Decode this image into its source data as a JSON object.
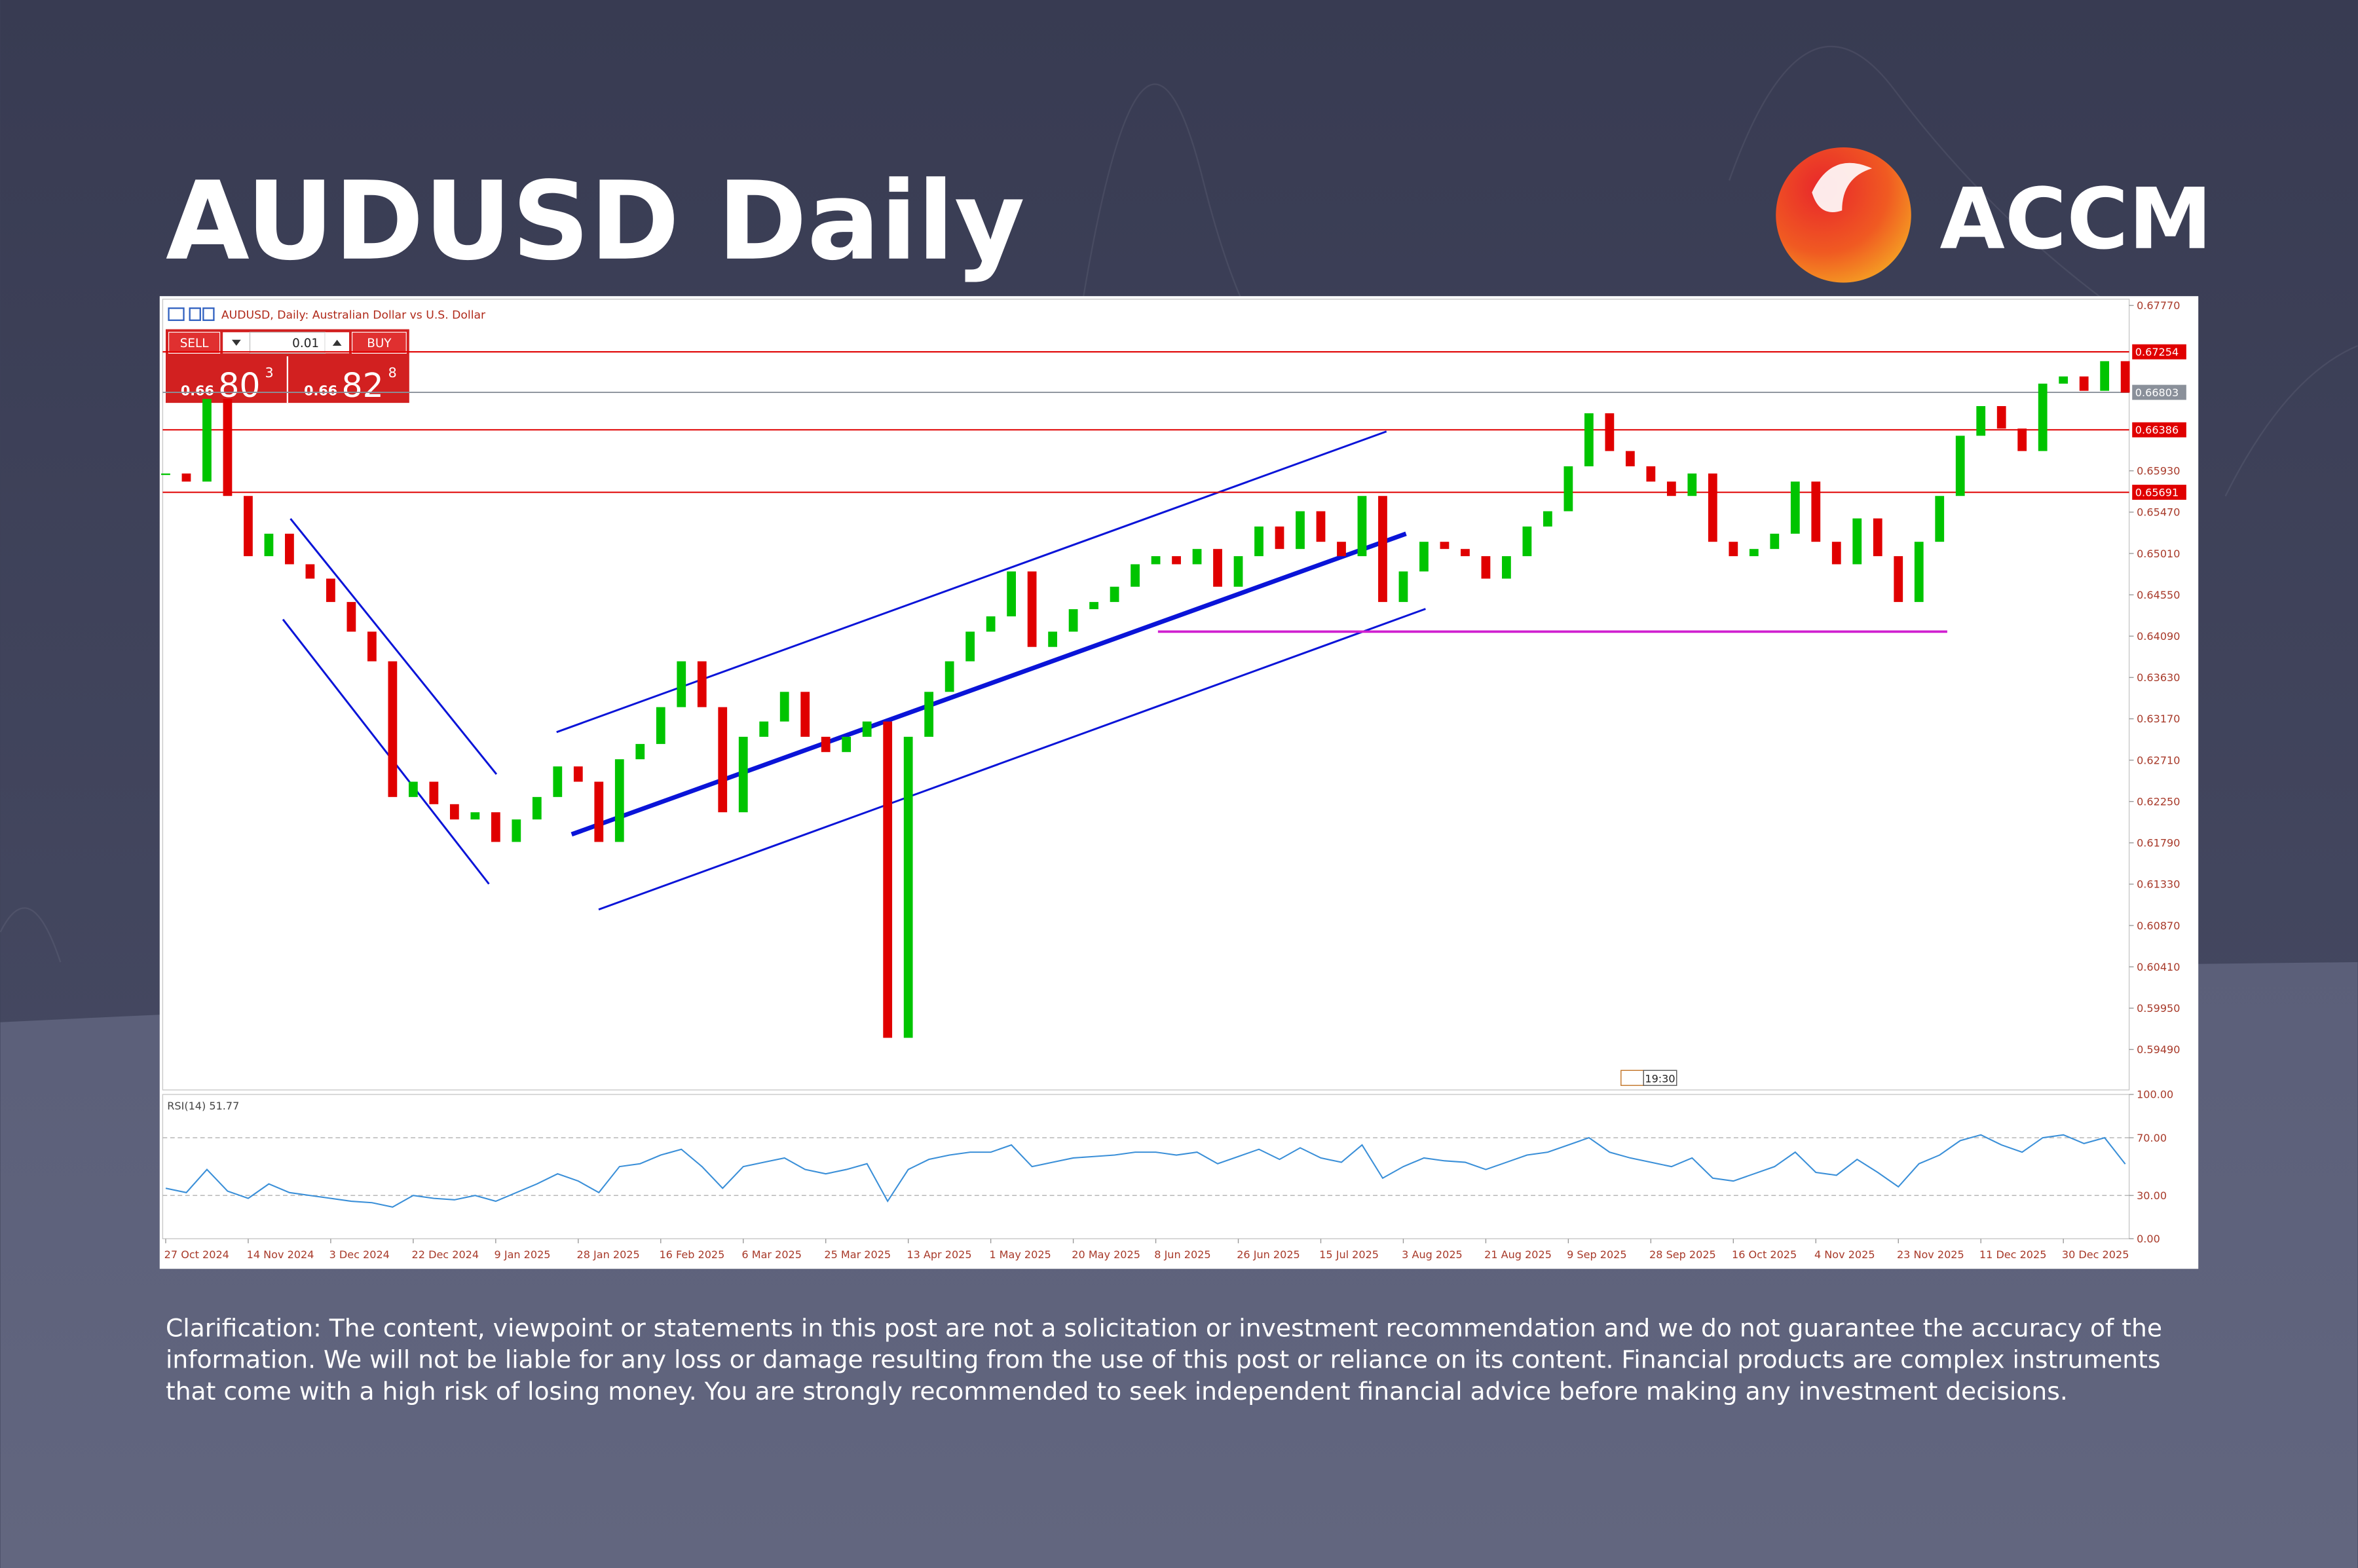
{
  "header": {
    "title": "AUDUSD Daily",
    "brand": "ACCM"
  },
  "chart_data": [
    {
      "type": "candlestick",
      "symbol_label": "AUDUSD, Daily:  Australian Dollar vs U.S. Dollar",
      "categories": [
        "27 Oct 2024",
        null,
        null,
        null,
        "14 Nov 2024",
        null,
        null,
        null,
        "3 Dec 2024",
        null,
        null,
        null,
        "22 Dec 2024",
        null,
        null,
        null,
        "9 Jan 2025",
        null,
        null,
        null,
        "28 Jan 2025",
        null,
        null,
        null,
        "16 Feb 2025",
        null,
        null,
        null,
        "6 Mar 2025",
        null,
        null,
        null,
        "25 Mar 2025",
        null,
        null,
        null,
        "13 Apr 2025",
        null,
        null,
        null,
        "1 May 2025",
        null,
        null,
        null,
        "20 May 2025",
        null,
        null,
        null,
        "8 Jun 2025",
        null,
        null,
        null,
        "26 Jun 2025",
        null,
        null,
        null,
        "15 Jul 2025",
        null,
        null,
        null,
        "3 Aug 2025",
        null,
        null,
        null,
        "21 Aug 2025",
        null,
        null,
        null,
        "9 Sep 2025",
        null,
        null,
        null,
        "28 Sep 2025",
        null,
        null,
        null,
        "16 Oct 2025",
        null,
        null,
        null,
        "4 Nov 2025",
        null,
        null,
        null,
        "23 Nov 2025",
        null,
        null,
        null,
        "11 Dec 2025",
        null,
        null,
        null,
        "30 Dec 2025",
        null,
        null,
        null
      ],
      "values": [
        0.659,
        0.6581,
        0.6673,
        0.6565,
        0.6498,
        0.6523,
        0.6489,
        0.6473,
        0.6447,
        0.6414,
        0.6381,
        0.623,
        0.6247,
        0.6222,
        0.6205,
        0.6213,
        0.618,
        0.6205,
        0.623,
        0.6264,
        0.6247,
        0.618,
        0.6272,
        0.6289,
        0.633,
        0.6381,
        0.633,
        0.6213,
        0.6297,
        0.6314,
        0.6347,
        0.6297,
        0.628,
        0.6297,
        0.6314,
        0.5962,
        0.6297,
        0.6347,
        0.6381,
        0.6414,
        0.6431,
        0.6481,
        0.6397,
        0.6414,
        0.6439,
        0.6447,
        0.6464,
        0.6489,
        0.6498,
        0.6489,
        0.6506,
        0.6464,
        0.6498,
        0.6531,
        0.6506,
        0.6548,
        0.6514,
        0.6498,
        0.6565,
        0.6447,
        0.6481,
        0.6514,
        0.6506,
        0.6498,
        0.6473,
        0.6498,
        0.6531,
        0.6548,
        0.6598,
        0.6657,
        0.6615,
        0.6598,
        0.6581,
        0.6565,
        0.659,
        0.6514,
        0.6498,
        0.6506,
        0.6523,
        0.6581,
        0.6514,
        0.6489,
        0.654,
        0.6498,
        0.6447,
        0.6514,
        0.6565,
        0.6632,
        0.6665,
        0.664,
        0.6615,
        0.669,
        0.6698,
        0.6682,
        0.6715,
        0.668
      ],
      "up_color": "#00c400",
      "down_color": "#e00000",
      "ylim": [
        0.5904,
        0.6784
      ],
      "yticks": [
        {
          "value": 0.6777,
          "label": "0.67770"
        },
        {
          "value": 0.6593,
          "label": "0.65930"
        },
        {
          "value": 0.6547,
          "label": "0.65470"
        },
        {
          "value": 0.6501,
          "label": "0.65010"
        },
        {
          "value": 0.6455,
          "label": "0.64550"
        },
        {
          "value": 0.6409,
          "label": "0.64090"
        },
        {
          "value": 0.6363,
          "label": "0.63630"
        },
        {
          "value": 0.6317,
          "label": "0.63170"
        },
        {
          "value": 0.6271,
          "label": "0.62710"
        },
        {
          "value": 0.6225,
          "label": "0.62250"
        },
        {
          "value": 0.6179,
          "label": "0.61790"
        },
        {
          "value": 0.6133,
          "label": "0.61330"
        },
        {
          "value": 0.6087,
          "label": "0.60870"
        },
        {
          "value": 0.6041,
          "label": "0.60410"
        },
        {
          "value": 0.5995,
          "label": "0.59950"
        },
        {
          "value": 0.5949,
          "label": "0.59490"
        }
      ],
      "levels": [
        0.67254,
        0.66386,
        0.65691
      ],
      "level_color": "#e00000",
      "current_price": 0.66803,
      "current_color": "#8a909a",
      "support_level": 0.6414,
      "support_color": "#d020d0",
      "trade_panel": {
        "sell": "SELL",
        "lot": "0.01",
        "buy": "BUY",
        "bid_big_prefix": "0.66",
        "bid_main": "80",
        "bid_sup": "3",
        "ask_big_prefix": "0.66",
        "ask_main": "82",
        "ask_sup": "8"
      },
      "time_label": "19:30"
    },
    {
      "type": "line",
      "title": "RSI(14) 51.77",
      "color": "#3a8fd8",
      "values": [
        35,
        32,
        48,
        33,
        28,
        38,
        32,
        30,
        28,
        26,
        25,
        22,
        30,
        28,
        27,
        30,
        26,
        32,
        38,
        45,
        40,
        32,
        50,
        52,
        58,
        62,
        50,
        35,
        50,
        53,
        56,
        48,
        45,
        48,
        52,
        26,
        48,
        55,
        58,
        60,
        60,
        65,
        50,
        53,
        56,
        57,
        58,
        60,
        60,
        58,
        60,
        52,
        57,
        62,
        55,
        63,
        56,
        53,
        65,
        42,
        50,
        56,
        54,
        53,
        48,
        53,
        58,
        60,
        65,
        70,
        60,
        56,
        53,
        50,
        56,
        42,
        40,
        45,
        50,
        60,
        46,
        44,
        55,
        46,
        36,
        52,
        58,
        68,
        72,
        65,
        60,
        70,
        72,
        66,
        70,
        51.77
      ],
      "ylim": [
        0,
        100
      ],
      "yticks": [
        {
          "value": 100,
          "label": "100.00"
        },
        {
          "value": 70,
          "label": "70.00"
        },
        {
          "value": 30,
          "label": "30.00"
        },
        {
          "value": 0,
          "label": "0.00"
        }
      ]
    }
  ],
  "disclaimer": "Clarification: The content, viewpoint or statements in this post are not a solicitation or investment recommendation and we do not guarantee the accuracy of the information. We will not be liable for any loss or damage resulting from the use of this post or reliance on its content. Financial products are complex instruments that come with a high risk of losing money. You are strongly recommended to seek independent financial advice before making any investment decisions."
}
